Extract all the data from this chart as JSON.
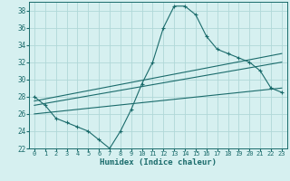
{
  "xlabel": "Humidex (Indice chaleur)",
  "ylabel": "",
  "bg_color": "#d6f0f0",
  "line_color": "#1a6b6b",
  "grid_color": "#b0d8d8",
  "xlim": [
    -0.5,
    23.5
  ],
  "ylim": [
    22,
    39
  ],
  "yticks": [
    22,
    24,
    26,
    28,
    30,
    32,
    34,
    36,
    38
  ],
  "xticks": [
    0,
    1,
    2,
    3,
    4,
    5,
    6,
    7,
    8,
    9,
    10,
    11,
    12,
    13,
    14,
    15,
    16,
    17,
    18,
    19,
    20,
    21,
    22,
    23
  ],
  "curve1_x": [
    0,
    1,
    2,
    3,
    4,
    5,
    6,
    7,
    8,
    9,
    10,
    11,
    12,
    13,
    14,
    15,
    16,
    17,
    18,
    19,
    20,
    21,
    22,
    23
  ],
  "curve1_y": [
    28.0,
    27.0,
    25.5,
    25.0,
    24.5,
    24.0,
    23.0,
    22.0,
    24.0,
    26.5,
    29.5,
    32.0,
    36.0,
    38.5,
    38.5,
    37.5,
    35.0,
    33.5,
    33.0,
    32.5,
    32.0,
    31.0,
    29.0,
    28.5
  ],
  "line2_x": [
    0,
    23
  ],
  "line2_y": [
    27.5,
    33.0
  ],
  "line3_x": [
    0,
    23
  ],
  "line3_y": [
    27.0,
    32.0
  ],
  "line4_x": [
    0,
    23
  ],
  "line4_y": [
    26.0,
    29.0
  ]
}
